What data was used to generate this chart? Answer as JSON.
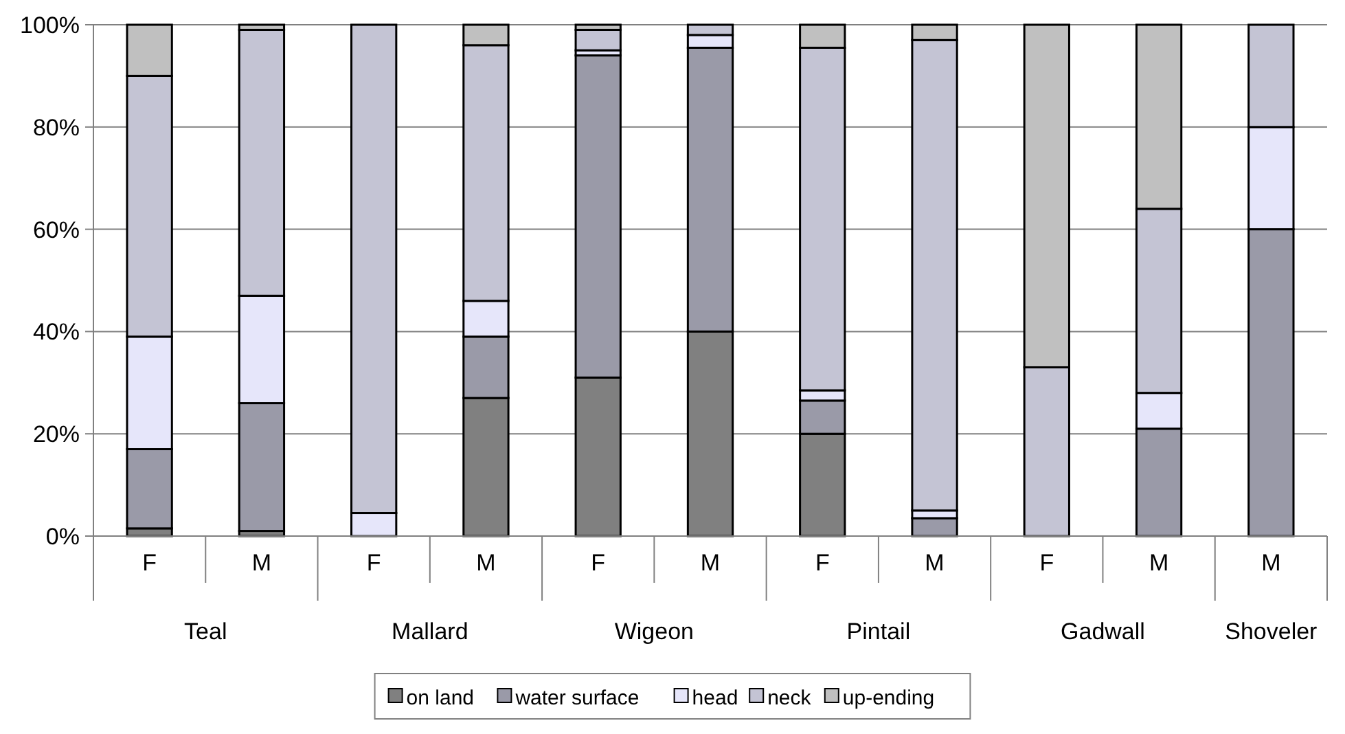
{
  "chart_data": {
    "type": "bar",
    "stacked": true,
    "categories": [
      "F",
      "M",
      "F",
      "M",
      "F",
      "M",
      "F",
      "M",
      "F",
      "M",
      "M"
    ],
    "annotations": [
      "Teal",
      "Mallard",
      "Wigeon",
      "Pintail",
      "Gadwall",
      "Shoveler"
    ],
    "series": [
      {
        "name": "on land",
        "color": "#808080",
        "values": [
          1.5,
          1,
          0,
          27,
          31,
          40,
          20,
          0,
          0,
          0,
          0
        ]
      },
      {
        "name": "water surface",
        "color": "#9a9aa8",
        "values": [
          15.5,
          25,
          0,
          12,
          63,
          55.5,
          6.5,
          3.5,
          0,
          21,
          60
        ]
      },
      {
        "name": "head",
        "color": "#e6e6fa",
        "values": [
          22,
          21,
          4.5,
          7,
          1,
          2.5,
          2,
          1.5,
          0,
          7,
          20
        ]
      },
      {
        "name": "neck",
        "color": "#c4c4d4",
        "values": [
          51,
          52,
          95.5,
          50,
          4,
          2,
          67,
          92,
          33,
          36,
          20
        ]
      },
      {
        "name": "up-ending",
        "color": "#c0c0c0",
        "values": [
          10,
          1,
          0,
          4,
          1,
          0,
          4.5,
          3,
          67,
          36,
          0
        ]
      }
    ],
    "ylim": [
      0,
      100
    ],
    "yticks": [
      {
        "value": 0,
        "label": "0%"
      },
      {
        "value": 20,
        "label": "20%"
      },
      {
        "value": 40,
        "label": "40%"
      },
      {
        "value": 60,
        "label": "60%"
      },
      {
        "value": 80,
        "label": "80%"
      },
      {
        "value": 100,
        "label": "100%"
      }
    ],
    "grid": "y",
    "legend": "bottom"
  }
}
